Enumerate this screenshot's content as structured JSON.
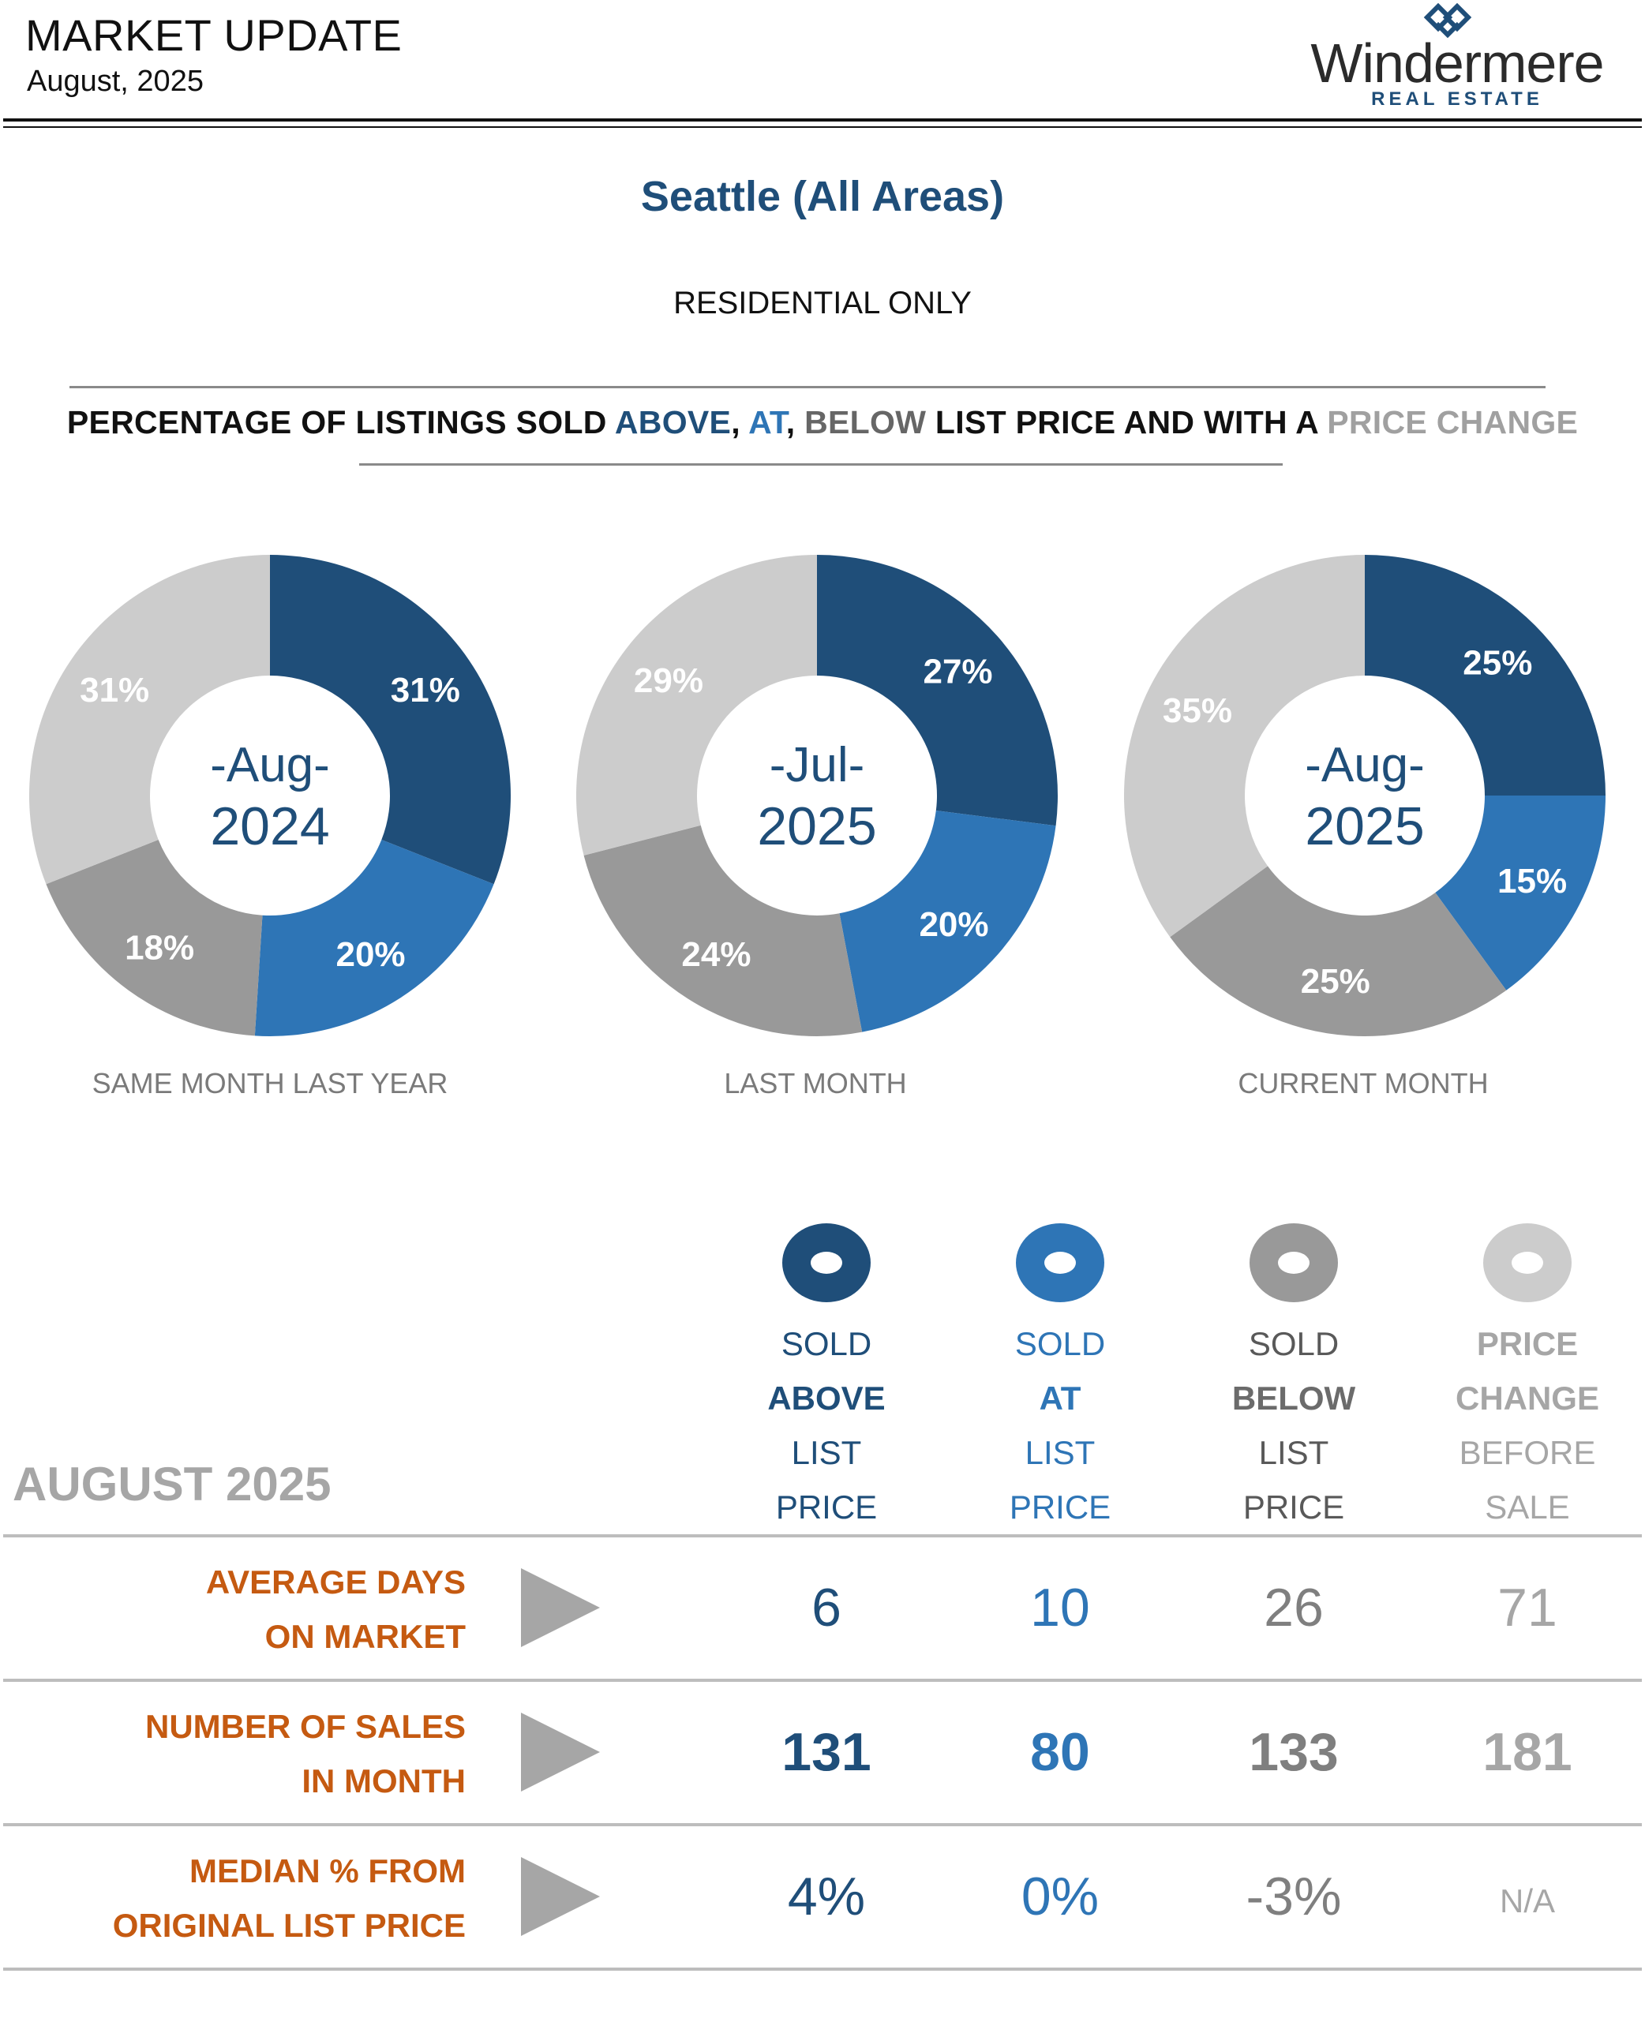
{
  "header": {
    "title": "MARKET UPDATE",
    "date": "August, 2025",
    "logo_name": "Windermere",
    "logo_sub": "REAL ESTATE"
  },
  "area_title": "Seattle (All Areas)",
  "subtitle": "RESIDENTIAL ONLY",
  "section_heading": {
    "part1": "PERCENTAGE OF LISTINGS SOLD ",
    "above": "ABOVE",
    "sep1": ", ",
    "at": "AT",
    "sep2": ", ",
    "below": "BELOW",
    "part2": " LIST PRICE AND WITH A ",
    "price_change": "PRICE CHANGE"
  },
  "colors": {
    "above": "#1f4e79",
    "at": "#2e75b6",
    "below": "#999999",
    "price_change": "#cccccc",
    "row_label": "#c55a11"
  },
  "chart_data": [
    {
      "type": "pie",
      "center_line1": "-Aug-",
      "center_line2": "2024",
      "caption": "SAME MONTH LAST YEAR",
      "categories": [
        "Sold Above",
        "Sold At",
        "Sold Below",
        "Price Change"
      ],
      "values": [
        31,
        20,
        18,
        31
      ],
      "labels": [
        "31%",
        "20%",
        "18%",
        "31%"
      ]
    },
    {
      "type": "pie",
      "center_line1": "-Jul-",
      "center_line2": "2025",
      "caption": "LAST MONTH",
      "categories": [
        "Sold Above",
        "Sold At",
        "Sold Below",
        "Price Change"
      ],
      "values": [
        27,
        20,
        24,
        29
      ],
      "labels": [
        "27%",
        "20%",
        "24%",
        "29%"
      ]
    },
    {
      "type": "pie",
      "center_line1": "-Aug-",
      "center_line2": "2025",
      "caption": "CURRENT MONTH",
      "categories": [
        "Sold Above",
        "Sold At",
        "Sold Below",
        "Price Change"
      ],
      "values": [
        25,
        15,
        25,
        35
      ],
      "labels": [
        "25%",
        "15%",
        "25%",
        "35%"
      ]
    }
  ],
  "table": {
    "month_label": "AUGUST 2025",
    "columns": [
      {
        "key": "above",
        "line1": "SOLD",
        "line2": "ABOVE",
        "line3": "LIST",
        "line4": "PRICE",
        "icon": "donut-icon"
      },
      {
        "key": "at",
        "line1": "SOLD",
        "line2": "AT",
        "line3": "LIST",
        "line4": "PRICE",
        "icon": "donut-icon"
      },
      {
        "key": "below",
        "line1": "SOLD",
        "line2": "BELOW",
        "line3": "LIST",
        "line4": "PRICE",
        "icon": "donut-icon"
      },
      {
        "key": "price_change",
        "line1": "PRICE",
        "line2": "CHANGE",
        "line3": "BEFORE",
        "line4": "SALE",
        "icon": "donut-icon"
      }
    ],
    "rows": [
      {
        "label1": "AVERAGE DAYS",
        "label2": "ON MARKET",
        "values": [
          "6",
          "10",
          "26",
          "71"
        ],
        "arrow_icon": "play-arrow-icon"
      },
      {
        "label1": "NUMBER OF SALES",
        "label2": "IN MONTH",
        "values": [
          "131",
          "80",
          "133",
          "181"
        ],
        "arrow_icon": "play-arrow-icon"
      },
      {
        "label1": "MEDIAN % FROM",
        "label2": "ORIGINAL LIST PRICE",
        "values": [
          "4%",
          "0%",
          "-3%",
          "N/A"
        ],
        "arrow_icon": "play-arrow-icon"
      }
    ]
  }
}
